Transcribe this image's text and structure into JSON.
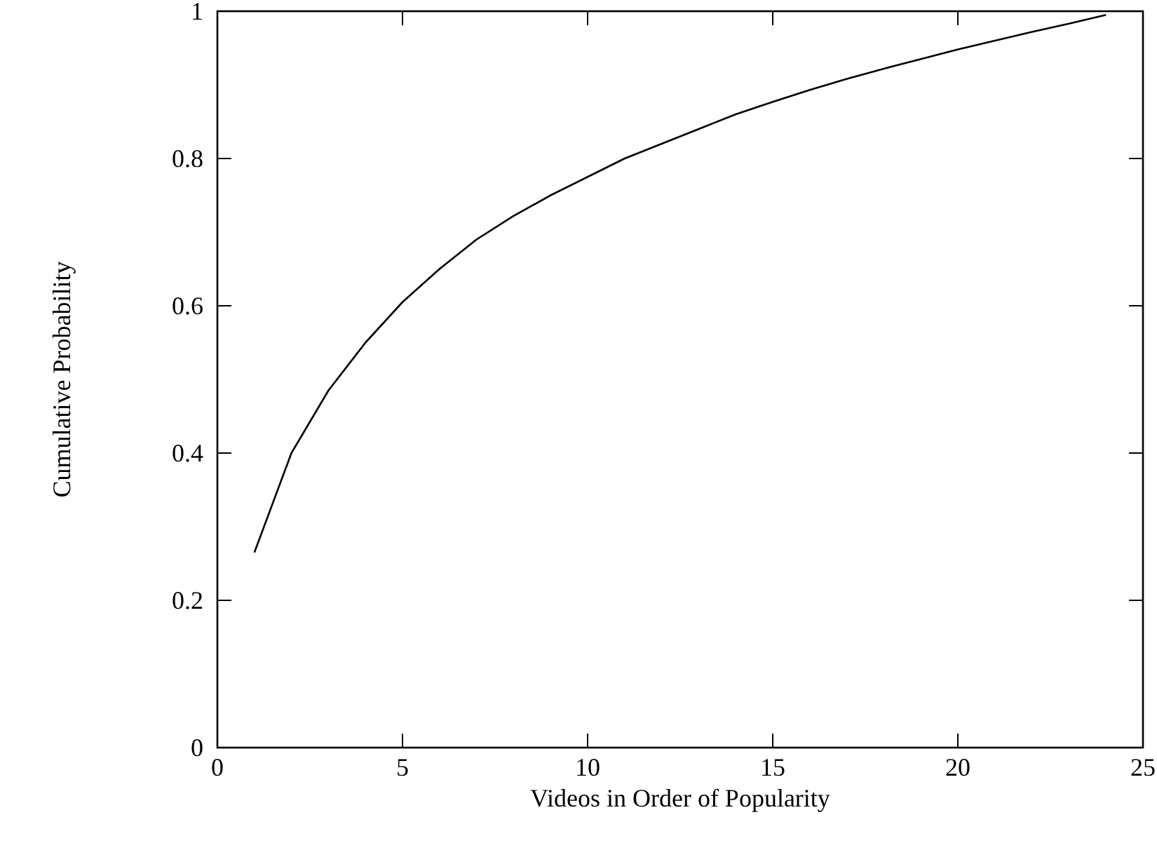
{
  "chart_data": {
    "type": "line",
    "xlabel": "Videos in Order of Popularity",
    "ylabel": "Cumulative Probability",
    "x": [
      1,
      2,
      3,
      4,
      5,
      6,
      7,
      8,
      9,
      10,
      11,
      12,
      13,
      14,
      15,
      16,
      17,
      18,
      19,
      20,
      21,
      22,
      23,
      24
    ],
    "series": [
      {
        "color": "#000000",
        "values": [
          0.265,
          0.4,
          0.485,
          0.55,
          0.605,
          0.65,
          0.69,
          0.722,
          0.75,
          0.775,
          0.8,
          0.82,
          0.84,
          0.86,
          0.877,
          0.893,
          0.908,
          0.922,
          0.935,
          0.948,
          0.96,
          0.972,
          0.983,
          0.995
        ]
      }
    ],
    "xlim": [
      0,
      25
    ],
    "xticks": [
      0,
      5,
      10,
      15,
      20,
      25
    ],
    "ylim": [
      0,
      1
    ],
    "yticks": [
      0,
      0.2,
      0.4,
      0.6,
      0.8,
      1
    ],
    "grid": false,
    "marker": "none",
    "line_style": "solid"
  }
}
